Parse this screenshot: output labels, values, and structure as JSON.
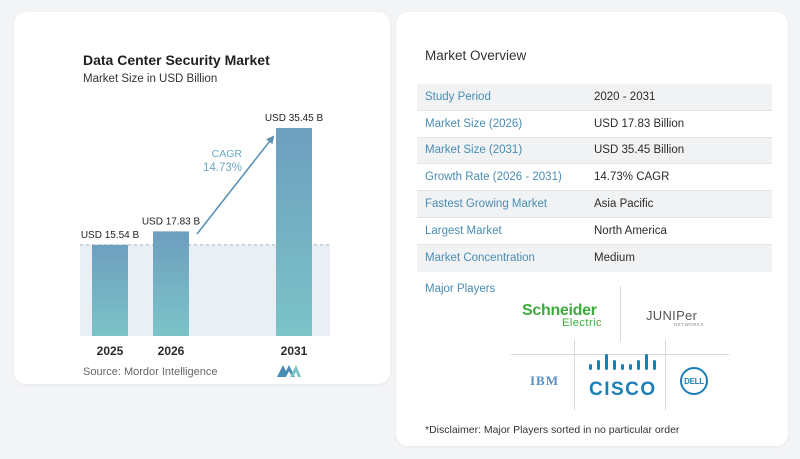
{
  "chart_data": {
    "type": "bar",
    "title": "Data Center Security Market",
    "subtitle": "Market Size in USD Billion",
    "categories": [
      "2025",
      "2026",
      "2031"
    ],
    "values": [
      15.54,
      17.83,
      35.45
    ],
    "value_labels": [
      "USD 15.54 B",
      "USD 17.83 B",
      "USD 35.45 B"
    ],
    "cagr_label": "CAGR",
    "cagr_value": "14.73%",
    "colors": {
      "bar_top": "#6d9fbf",
      "bar_bottom": "#7cc3c8",
      "band": "#dfe8f1",
      "arrow": "#5b92b5",
      "cagr_text": "#6aa9c6"
    }
  },
  "source": "Source: Mordor Intelligence",
  "overview": {
    "title": "Market Overview",
    "rows": [
      {
        "key": "Study Period",
        "value": "2020 - 2031"
      },
      {
        "key": "Market Size (2026)",
        "value": "USD 17.83 Billion"
      },
      {
        "key": "Market Size (2031)",
        "value": "USD 35.45 Billion"
      },
      {
        "key": "Growth Rate (2026 - 2031)",
        "value": "14.73% CAGR"
      },
      {
        "key": "Fastest Growing Market",
        "value": "Asia Pacific"
      },
      {
        "key": "Largest Market",
        "value": "North America"
      },
      {
        "key": "Market Concentration",
        "value": "Medium"
      }
    ]
  },
  "major_players": {
    "title": "Major Players",
    "logos": {
      "schneider": {
        "line1": "Schneider",
        "line2": "Electric"
      },
      "juniper": {
        "line1": "JUNIPer",
        "line2": "NETWORKS"
      },
      "ibm": "IBM",
      "cisco": "CISCO",
      "dell": "DELL"
    }
  },
  "disclaimer": "*Disclaimer: Major Players sorted in no particular order"
}
